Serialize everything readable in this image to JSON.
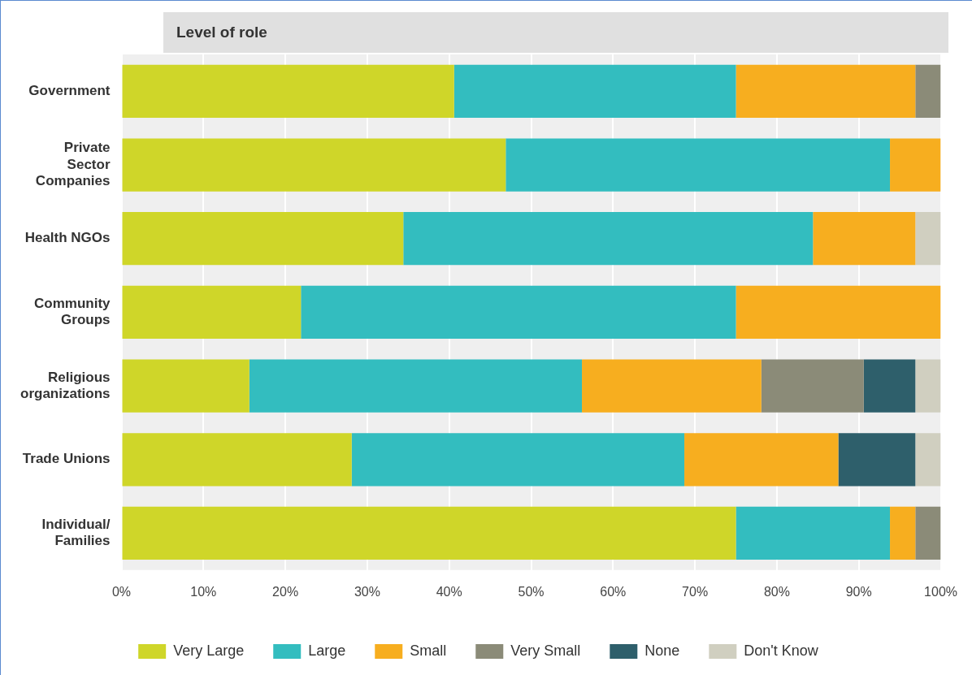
{
  "chart_data": {
    "type": "bar",
    "title": "Level of role",
    "orientation": "horizontal",
    "stacked": true,
    "categories": [
      "Government",
      "Private Sector Companies",
      "Health NGOs",
      "Community Groups",
      "Religious organizations",
      "Trade Unions",
      "Individual/ Families"
    ],
    "series": [
      {
        "name": "Very Large",
        "color": "#cfd629",
        "values": [
          40.6,
          46.9,
          34.4,
          21.9,
          15.6,
          28.1,
          75
        ]
      },
      {
        "name": "Large",
        "color": "#33bdbf",
        "values": [
          34.4,
          46.9,
          50,
          53.1,
          40.6,
          40.6,
          18.8
        ]
      },
      {
        "name": "Small",
        "color": "#f7ae1f",
        "values": [
          21.9,
          6.2,
          12.5,
          25,
          21.9,
          18.8,
          3.1
        ]
      },
      {
        "name": "Very Small",
        "color": "#8b8b78",
        "values": [
          3.1,
          0,
          0,
          0,
          12.5,
          0,
          3.1
        ]
      },
      {
        "name": "None",
        "color": "#2e5f6b",
        "values": [
          0,
          0,
          0,
          0,
          6.3,
          9.4,
          0
        ]
      },
      {
        "name": "Don't Know",
        "color": "#d0cfc0",
        "values": [
          0,
          0,
          3.1,
          0,
          3.1,
          3.1,
          0
        ]
      }
    ],
    "xlim": [
      0,
      100
    ],
    "xticks": [
      {
        "value": 0,
        "label": "0%"
      },
      {
        "value": 10,
        "label": "10%"
      },
      {
        "value": 20,
        "label": "20%"
      },
      {
        "value": 30,
        "label": "30%"
      },
      {
        "value": 40,
        "label": "40%"
      },
      {
        "value": 50,
        "label": "50%"
      },
      {
        "value": 60,
        "label": "60%"
      },
      {
        "value": 70,
        "label": "70%"
      },
      {
        "value": 80,
        "label": "80%"
      },
      {
        "value": 90,
        "label": "90%"
      },
      {
        "value": 100,
        "label": "100%"
      }
    ],
    "grid": "x",
    "legend": "bottom"
  }
}
